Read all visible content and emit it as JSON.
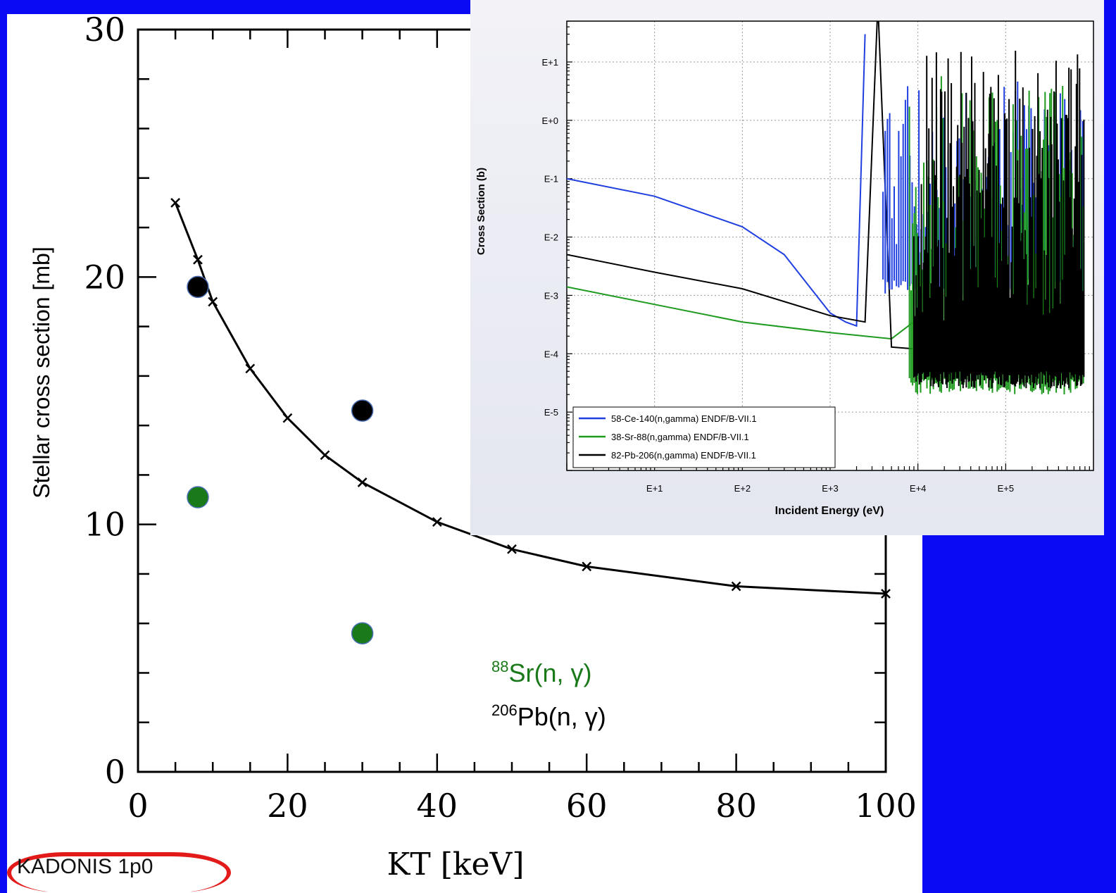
{
  "chart_data": [
    {
      "type": "scatter",
      "xlabel": "KT [keV]",
      "ylabel": "Stellar cross section [mb]",
      "xlim": [
        0,
        100
      ],
      "ylim": [
        0,
        30
      ],
      "x_ticks": [
        "0",
        "20",
        "40",
        "60",
        "80",
        "100"
      ],
      "y_ticks": [
        "0",
        "10",
        "20",
        "30"
      ],
      "grid": false,
      "series": [
        {
          "name": "",
          "mode": "line+markers",
          "color": "#000000",
          "x": [
            5,
            8,
            10,
            15,
            20,
            25,
            30,
            40,
            50,
            60,
            80,
            100
          ],
          "y": [
            23.0,
            20.7,
            19.0,
            16.3,
            14.3,
            12.8,
            11.7,
            10.1,
            9.0,
            8.3,
            7.5,
            7.2
          ]
        },
        {
          "name": "88Sr(n, γ)",
          "mode": "markers",
          "color": "#1a7a1a",
          "x": [
            8,
            30
          ],
          "y": [
            11.1,
            5.6
          ]
        },
        {
          "name": "206Pb(n, γ)",
          "mode": "markers",
          "color": "#000000",
          "x": [
            8,
            30
          ],
          "y": [
            19.6,
            14.6
          ]
        }
      ],
      "annotations": {
        "sr_sup": "88",
        "sr_text": "Sr(n, γ)",
        "pb_sup": "206",
        "pb_text": "Pb(n, γ)",
        "source": "KADONIS 1p0"
      }
    },
    {
      "type": "line",
      "xlabel": "Incident Energy (eV)",
      "ylabel": "Cross Section (b)",
      "log_x": true,
      "log_y": true,
      "x_ticks": [
        "E+1",
        "E+2",
        "E+3",
        "E+4",
        "E+5"
      ],
      "y_ticks": [
        "E+1",
        "E+0",
        "E-1",
        "E-2",
        "E-3",
        "E-4",
        "E-5"
      ],
      "grid": true,
      "legend_position": "bottom-left",
      "series": [
        {
          "name": "58-Ce-140(n,gamma) ENDF/B-VII.1",
          "color": "#1f3fe0",
          "x": [
            1,
            10,
            100,
            300,
            1000,
            1500,
            2000,
            2500
          ],
          "y": [
            0.1,
            0.05,
            0.015,
            0.005,
            0.0005,
            0.00035,
            0.0003,
            30
          ]
        },
        {
          "name": "38-Sr-88(n,gamma) ENDF/B-VII.1",
          "color": "#1e9a1e",
          "x": [
            1,
            10,
            100,
            1000,
            5000,
            10000
          ],
          "y": [
            0.0014,
            0.0007,
            0.00035,
            0.00023,
            0.00018,
            0.0004
          ]
        },
        {
          "name": "82-Pb-206(n,gamma) ENDF/B-VII.1",
          "color": "#000000",
          "x": [
            1,
            10,
            100,
            1000,
            2500,
            3500,
            5000,
            10000
          ],
          "y": [
            0.005,
            0.0025,
            0.0013,
            0.00045,
            0.00035,
            100,
            0.00013,
            0.00012
          ]
        }
      ]
    }
  ]
}
